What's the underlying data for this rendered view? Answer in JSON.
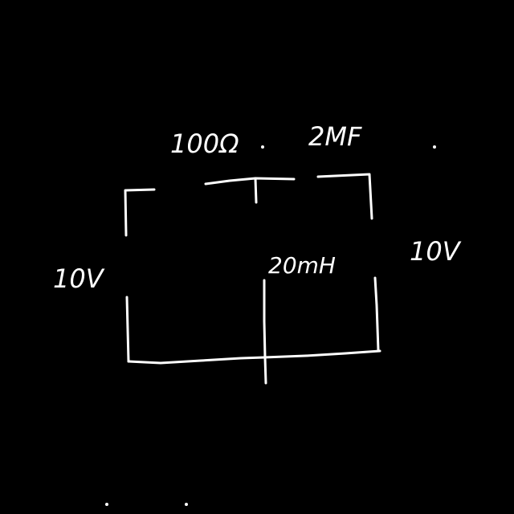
{
  "labels": {
    "resistor": "100Ω",
    "capacitor": "2MF",
    "inductor": "20mH",
    "source_left": "10V",
    "source_right": "10V"
  },
  "colors": {
    "background": "#000000",
    "ink": "#ffffff"
  }
}
